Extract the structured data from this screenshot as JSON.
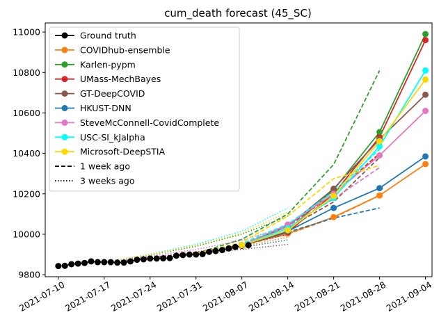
{
  "chart_data": {
    "type": "line",
    "title": "cum_death forecast (45_SC)",
    "xlabel": "",
    "ylabel": "",
    "x_range": [
      "2021-07-08",
      "2021-09-05"
    ],
    "ylim": [
      9790,
      11045
    ],
    "x_ticks": [
      "2021-07-10",
      "2021-07-17",
      "2021-07-24",
      "2021-07-31",
      "2021-08-07",
      "2021-08-14",
      "2021-08-21",
      "2021-08-28",
      "2021-09-04"
    ],
    "y_ticks": [
      9800,
      10000,
      10200,
      10400,
      10600,
      10800,
      11000
    ],
    "grid": false,
    "legend_position": "top-left",
    "ground_truth": {
      "name": "Ground truth",
      "color": "#000000",
      "x": [
        "2021-07-10",
        "2021-07-11",
        "2021-07-12",
        "2021-07-13",
        "2021-07-14",
        "2021-07-15",
        "2021-07-16",
        "2021-07-17",
        "2021-07-18",
        "2021-07-19",
        "2021-07-20",
        "2021-07-21",
        "2021-07-22",
        "2021-07-23",
        "2021-07-24",
        "2021-07-25",
        "2021-07-26",
        "2021-07-27",
        "2021-07-28",
        "2021-07-29",
        "2021-07-30",
        "2021-07-31",
        "2021-08-01",
        "2021-08-02",
        "2021-08-03",
        "2021-08-04",
        "2021-08-05",
        "2021-08-06",
        "2021-08-07",
        "2021-08-08"
      ],
      "y": [
        9843,
        9844,
        9852,
        9855,
        9858,
        9866,
        9862,
        9862,
        9862,
        9860,
        9860,
        9866,
        9874,
        9876,
        9880,
        9880,
        9881,
        9882,
        9894,
        9897,
        9900,
        9900,
        9902,
        9913,
        9917,
        9922,
        9930,
        9937,
        9943,
        9946
      ]
    },
    "series": [
      {
        "name": "COVIDhub-ensemble",
        "color": "#ff7f0e",
        "current": {
          "x": [
            "2021-08-07",
            "2021-08-14",
            "2021-08-21",
            "2021-08-28",
            "2021-09-04"
          ],
          "y": [
            9946,
            10003,
            10085,
            10192,
            10347
          ]
        },
        "week1": {
          "x": [
            "2021-07-31",
            "2021-08-07",
            "2021-08-14",
            "2021-08-21",
            "2021-08-28"
          ],
          "y": [
            9905,
            9945,
            10000,
            10082,
            10192
          ]
        },
        "week3": {
          "x": [
            "2021-07-17",
            "2021-07-24",
            "2021-07-31",
            "2021-08-07",
            "2021-08-14"
          ],
          "y": [
            9862,
            9884,
            9910,
            9940,
            9985
          ]
        }
      },
      {
        "name": "Karlen-pypm",
        "color": "#2ca02c",
        "current": {
          "x": [
            "2021-08-07",
            "2021-08-14",
            "2021-08-21",
            "2021-08-28",
            "2021-09-04"
          ],
          "y": [
            9946,
            10020,
            10220,
            10505,
            10990
          ]
        },
        "week1": {
          "x": [
            "2021-07-31",
            "2021-08-07",
            "2021-08-14",
            "2021-08-21",
            "2021-08-28"
          ],
          "y": [
            9905,
            9975,
            10100,
            10345,
            10810
          ]
        },
        "week3": {
          "x": [
            "2021-07-17",
            "2021-07-24",
            "2021-07-31",
            "2021-08-07",
            "2021-08-14"
          ],
          "y": [
            9862,
            9898,
            9940,
            10000,
            10090
          ]
        }
      },
      {
        "name": "UMass-MechBayes",
        "color": "#d62728",
        "current": {
          "x": [
            "2021-08-07",
            "2021-08-14",
            "2021-08-21",
            "2021-08-28",
            "2021-09-04"
          ],
          "y": [
            9946,
            10010,
            10200,
            10480,
            10960
          ]
        },
        "week1": {
          "x": [
            "2021-07-31",
            "2021-08-07",
            "2021-08-14",
            "2021-08-21",
            "2021-08-28"
          ],
          "y": [
            9905,
            9955,
            10040,
            10200,
            10400
          ]
        },
        "week3": {
          "x": [
            "2021-07-17",
            "2021-07-24",
            "2021-07-31",
            "2021-08-07",
            "2021-08-14"
          ],
          "y": [
            9862,
            9885,
            9912,
            9948,
            10000
          ]
        }
      },
      {
        "name": "GT-DeepCOVID",
        "color": "#8c564b",
        "current": {
          "x": [
            "2021-08-07",
            "2021-08-14",
            "2021-08-21",
            "2021-08-28",
            "2021-09-04"
          ],
          "y": [
            9946,
            10040,
            10225,
            10470,
            10690
          ]
        },
        "week1": {
          "x": [
            "2021-07-31",
            "2021-08-07",
            "2021-08-14",
            "2021-08-21",
            "2021-08-28"
          ],
          "y": [
            9905,
            9950,
            10030,
            10160,
            10380
          ]
        },
        "week3": {
          "x": [
            "2021-07-17",
            "2021-07-24",
            "2021-07-31",
            "2021-08-07",
            "2021-08-14"
          ],
          "y": [
            9862,
            9880,
            9905,
            9925,
            9950
          ]
        }
      },
      {
        "name": "HKUST-DNN",
        "color": "#1f77b4",
        "current": {
          "x": [
            "2021-08-07",
            "2021-08-14",
            "2021-08-21",
            "2021-08-28",
            "2021-09-04"
          ],
          "y": [
            9946,
            10015,
            10130,
            10228,
            10385
          ]
        },
        "week1": {
          "x": [
            "2021-07-31",
            "2021-08-07",
            "2021-08-14",
            "2021-08-21",
            "2021-08-28"
          ],
          "y": [
            9905,
            9945,
            10010,
            10080,
            10130
          ]
        },
        "week3": {
          "x": [
            "2021-07-17",
            "2021-07-24",
            "2021-07-31",
            "2021-08-07",
            "2021-08-14"
          ],
          "y": [
            9862,
            9880,
            9905,
            9935,
            9972
          ]
        }
      },
      {
        "name": "SteveMcConnell-CovidComplete",
        "color": "#e377c2",
        "current": {
          "x": [
            "2021-08-07",
            "2021-08-14",
            "2021-08-21",
            "2021-08-28",
            "2021-09-04"
          ],
          "y": [
            9946,
            10048,
            10200,
            10390,
            10610
          ]
        },
        "week1": {
          "x": [
            "2021-07-31",
            "2021-08-07",
            "2021-08-14",
            "2021-08-21",
            "2021-08-28"
          ],
          "y": [
            9905,
            9950,
            10040,
            10175,
            10330
          ]
        },
        "week3": {
          "x": [
            "2021-07-17",
            "2021-07-24",
            "2021-07-31",
            "2021-08-07",
            "2021-08-14"
          ],
          "y": [
            9862,
            9892,
            9925,
            9970,
            10040
          ]
        }
      },
      {
        "name": "USC-SI_kJalpha",
        "color": "#00ffff",
        "current": {
          "x": [
            "2021-08-07",
            "2021-08-14",
            "2021-08-21",
            "2021-08-28",
            "2021-09-04"
          ],
          "y": [
            9946,
            10030,
            10180,
            10435,
            10810
          ]
        },
        "week1": {
          "x": [
            "2021-07-31",
            "2021-08-07",
            "2021-08-14",
            "2021-08-21",
            "2021-08-28"
          ],
          "y": [
            9905,
            9955,
            10050,
            10210,
            10420
          ]
        },
        "week3": {
          "x": [
            "2021-07-17",
            "2021-07-24",
            "2021-07-31",
            "2021-08-07",
            "2021-08-14"
          ],
          "y": [
            9862,
            9902,
            9950,
            10015,
            10130
          ]
        }
      },
      {
        "name": "Microsoft-DeepSTIA",
        "color": "#ffd700",
        "current": {
          "x": [
            "2021-08-07",
            "2021-08-14",
            "2021-08-21",
            "2021-08-28",
            "2021-09-04"
          ],
          "y": [
            9946,
            10020,
            10190,
            10460,
            10765
          ]
        },
        "week1": {
          "x": [
            "2021-07-31",
            "2021-08-07",
            "2021-08-14",
            "2021-08-21",
            "2021-08-28"
          ],
          "y": [
            9905,
            9960,
            10090,
            10275,
            10340
          ]
        },
        "week3": {
          "x": [
            "2021-07-17",
            "2021-07-24",
            "2021-07-31",
            "2021-08-07",
            "2021-08-14"
          ],
          "y": [
            9862,
            9900,
            9945,
            10005,
            10110
          ]
        }
      }
    ],
    "legend_extra": [
      {
        "label": "1 week ago",
        "style": "dashed"
      },
      {
        "label": "3 weeks ago",
        "style": "dotted"
      }
    ]
  }
}
